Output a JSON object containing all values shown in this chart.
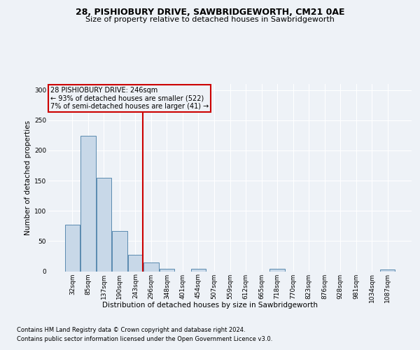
{
  "title1": "28, PISHIOBURY DRIVE, SAWBRIDGEWORTH, CM21 0AE",
  "title2": "Size of property relative to detached houses in Sawbridgeworth",
  "xlabel": "Distribution of detached houses by size in Sawbridgeworth",
  "ylabel": "Number of detached properties",
  "footer1": "Contains HM Land Registry data © Crown copyright and database right 2024.",
  "footer2": "Contains public sector information licensed under the Open Government Licence v3.0.",
  "annotation_line1": "28 PISHIOBURY DRIVE: 246sqm",
  "annotation_line2": "← 93% of detached houses are smaller (522)",
  "annotation_line3": "7% of semi-detached houses are larger (41) →",
  "bar_color": "#c8d8e8",
  "bar_edge_color": "#5a8ab0",
  "vline_color": "#cc0000",
  "vline_x_index": 4,
  "categories": [
    "32sqm",
    "85sqm",
    "137sqm",
    "190sqm",
    "243sqm",
    "296sqm",
    "348sqm",
    "401sqm",
    "454sqm",
    "507sqm",
    "559sqm",
    "612sqm",
    "665sqm",
    "718sqm",
    "770sqm",
    "823sqm",
    "876sqm",
    "928sqm",
    "981sqm",
    "1034sqm",
    "1087sqm"
  ],
  "values": [
    77,
    224,
    155,
    67,
    27,
    14,
    4,
    0,
    4,
    0,
    0,
    0,
    0,
    4,
    0,
    0,
    0,
    0,
    0,
    0,
    3
  ],
  "ylim": [
    0,
    310
  ],
  "yticks": [
    0,
    50,
    100,
    150,
    200,
    250,
    300
  ],
  "background_color": "#eef2f7",
  "grid_color": "#ffffff",
  "title1_fontsize": 9,
  "title2_fontsize": 8,
  "ylabel_fontsize": 7.5,
  "xlabel_fontsize": 7.5,
  "tick_fontsize": 6.5,
  "footer_fontsize": 6,
  "annot_fontsize": 7
}
